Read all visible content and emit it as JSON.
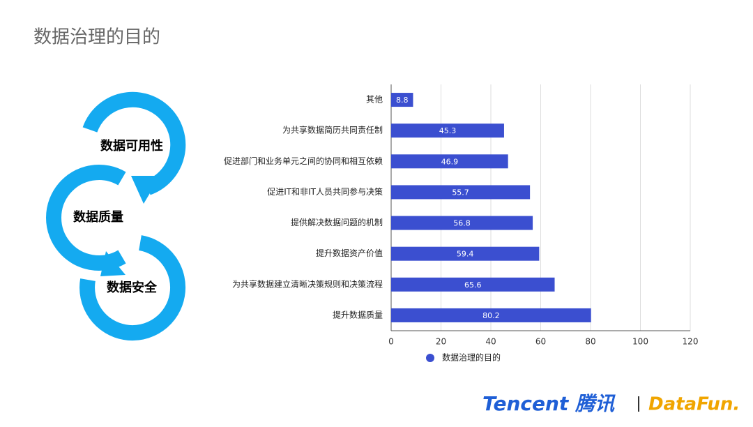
{
  "title": "数据治理的目的",
  "diagram": {
    "labels": [
      "数据可用性",
      "数据质量",
      "数据安全"
    ]
  },
  "chart_data": {
    "type": "hbar",
    "categories": [
      "其他",
      "为共享数据简历共同责任制",
      "促进部门和业务单元之间的协同和相互依赖",
      "促进IT和非IT人员共同参与决策",
      "提供解决数据问题的机制",
      "提升数据资产价值",
      "为共享数据建立清晰决策规则和决策流程",
      "提升数据质量"
    ],
    "series": [
      {
        "name": "数据治理的目的",
        "color": "#3b4fd0",
        "values": [
          8.8,
          45.3,
          46.9,
          55.7,
          56.8,
          59.4,
          65.6,
          80.2
        ]
      }
    ],
    "xlim": [
      0,
      120
    ],
    "xticks": [
      0,
      20,
      40,
      60,
      80,
      100,
      120
    ],
    "grid": true,
    "legend": "bottom"
  },
  "footer": {
    "logos": [
      "Tencent 腾讯",
      "DataFun."
    ]
  }
}
